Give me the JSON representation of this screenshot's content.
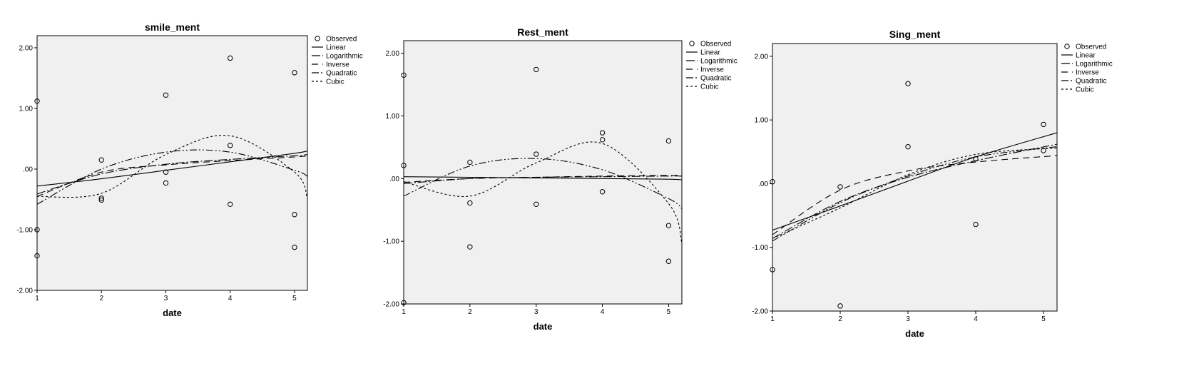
{
  "colors": {
    "plot_background": "#f0f0f0",
    "ink": "#000000",
    "page": "#ffffff"
  },
  "legend_labels": {
    "observed": "Observed",
    "linear": "Linear",
    "logarithmic": "Logarithmic",
    "inverse": "Inverse",
    "quadratic": "Quadratic",
    "cubic": "Cubic"
  },
  "chart_data": [
    {
      "type": "scatter",
      "title": "smile_ment",
      "xlabel": "date",
      "ylabel": "",
      "xlim": [
        1,
        5.2
      ],
      "ylim": [
        -2.0,
        2.2
      ],
      "x_ticks": [
        1,
        2,
        3,
        4,
        5
      ],
      "x_tick_labels": [
        "1",
        "2",
        "3",
        "4",
        "5"
      ],
      "y_ticks": [
        2.0,
        1.0,
        0.0,
        -1.0,
        -2.0
      ],
      "y_tick_labels": [
        "2.00",
        "1.00",
        ".00",
        "-1.00",
        "-2.00"
      ],
      "observed": {
        "x": [
          1,
          1,
          1,
          2,
          2,
          2,
          3,
          3,
          3,
          4,
          4,
          4,
          5,
          5,
          5
        ],
        "y": [
          1.12,
          -1.0,
          -1.43,
          0.15,
          -0.48,
          -0.51,
          1.22,
          -0.05,
          -0.23,
          1.83,
          0.39,
          -0.58,
          1.59,
          -0.75,
          -1.29
        ]
      },
      "fits": {
        "linear": [
          -0.28,
          -0.16,
          -0.02,
          0.12,
          0.26,
          0.3
        ],
        "logarithmic": [
          -0.41,
          -0.08,
          0.08,
          0.16,
          0.22,
          0.24
        ],
        "inverse": [
          -0.45,
          -0.05,
          0.07,
          0.14,
          0.2,
          0.22
        ],
        "quadratic": [
          -0.58,
          0.0,
          0.28,
          0.28,
          -0.02,
          -0.12
        ],
        "cubic": [
          -0.45,
          -0.4,
          0.24,
          0.55,
          -0.05,
          -0.48
        ]
      },
      "fit_x": [
        1,
        2,
        3,
        4,
        5,
        5.2
      ],
      "legend": [
        "Observed",
        "Linear",
        "Logarithmic",
        "Inverse",
        "Quadratic",
        "Cubic"
      ],
      "grid": false,
      "legend_position": "right"
    },
    {
      "type": "scatter",
      "title": "Rest_ment",
      "xlabel": "date",
      "ylabel": "",
      "xlim": [
        1,
        5.2
      ],
      "ylim": [
        -2.0,
        2.2
      ],
      "x_ticks": [
        1,
        2,
        3,
        4,
        5
      ],
      "x_tick_labels": [
        "1",
        "2",
        "3",
        "4",
        "5"
      ],
      "y_ticks": [
        2.0,
        1.0,
        0.0,
        -1.0,
        -2.0
      ],
      "y_tick_labels": [
        "2.00",
        "1.00",
        ".00",
        "-1.00",
        "-2.00"
      ],
      "observed": {
        "x": [
          1,
          1,
          1,
          2,
          2,
          2,
          3,
          3,
          3,
          4,
          4,
          4,
          5,
          5,
          5
        ],
        "y": [
          1.65,
          0.21,
          -1.98,
          0.26,
          -0.39,
          -1.09,
          1.74,
          0.39,
          -0.41,
          0.73,
          0.62,
          -0.21,
          0.6,
          -0.75,
          -1.32
        ]
      },
      "fits": {
        "linear": [
          0.03,
          0.02,
          0.01,
          0.0,
          -0.01,
          -0.02
        ],
        "logarithmic": [
          -0.08,
          0.0,
          0.02,
          0.03,
          0.04,
          0.04
        ],
        "inverse": [
          -0.06,
          0.0,
          0.02,
          0.04,
          0.05,
          0.05
        ],
        "quadratic": [
          -0.28,
          0.2,
          0.32,
          0.14,
          -0.32,
          -0.48
        ],
        "cubic": [
          -0.05,
          -0.28,
          0.25,
          0.56,
          -0.4,
          -1.02
        ]
      },
      "fit_x": [
        1,
        2,
        3,
        4,
        5,
        5.2
      ],
      "legend": [
        "Observed",
        "Linear",
        "Logarithmic",
        "Inverse",
        "Quadratic",
        "Cubic"
      ],
      "grid": false,
      "legend_position": "right"
    },
    {
      "type": "scatter",
      "title": "Sing_ment",
      "xlabel": "date",
      "ylabel": "",
      "xlim": [
        1,
        5.2
      ],
      "ylim": [
        -2.0,
        2.2
      ],
      "x_ticks": [
        1,
        2,
        3,
        4,
        5
      ],
      "x_tick_labels": [
        "1",
        "2",
        "3",
        "4",
        "5"
      ],
      "y_ticks": [
        2.0,
        1.0,
        0.0,
        -1.0,
        -2.0
      ],
      "y_tick_labels": [
        "2.00",
        "1.00",
        ".00",
        "-1.00",
        "-2.00"
      ],
      "observed": {
        "x": [
          1,
          1,
          2,
          2,
          3,
          3,
          4,
          4,
          5,
          5
        ],
        "y": [
          0.03,
          -1.35,
          -0.05,
          -1.92,
          1.57,
          0.58,
          0.39,
          -0.64,
          0.93,
          0.52
        ]
      },
      "fits": {
        "linear": [
          -0.73,
          -0.35,
          0.04,
          0.42,
          0.8
        ],
        "logarithmic": [
          -0.86,
          -0.28,
          0.1,
          0.36,
          0.62
        ],
        "inverse": [
          -0.8,
          -0.1,
          0.2,
          0.34,
          0.44
        ],
        "quadratic": [
          -0.9,
          -0.3,
          0.12,
          0.42,
          0.58
        ],
        "cubic": [
          -0.86,
          -0.38,
          0.14,
          0.46,
          0.56
        ]
      },
      "fit_x": [
        1,
        2,
        3,
        4,
        5.2
      ],
      "legend": [
        "Observed",
        "Linear",
        "Logarithmic",
        "Inverse",
        "Quadratic",
        "Cubic"
      ],
      "grid": false,
      "legend_position": "right"
    }
  ]
}
